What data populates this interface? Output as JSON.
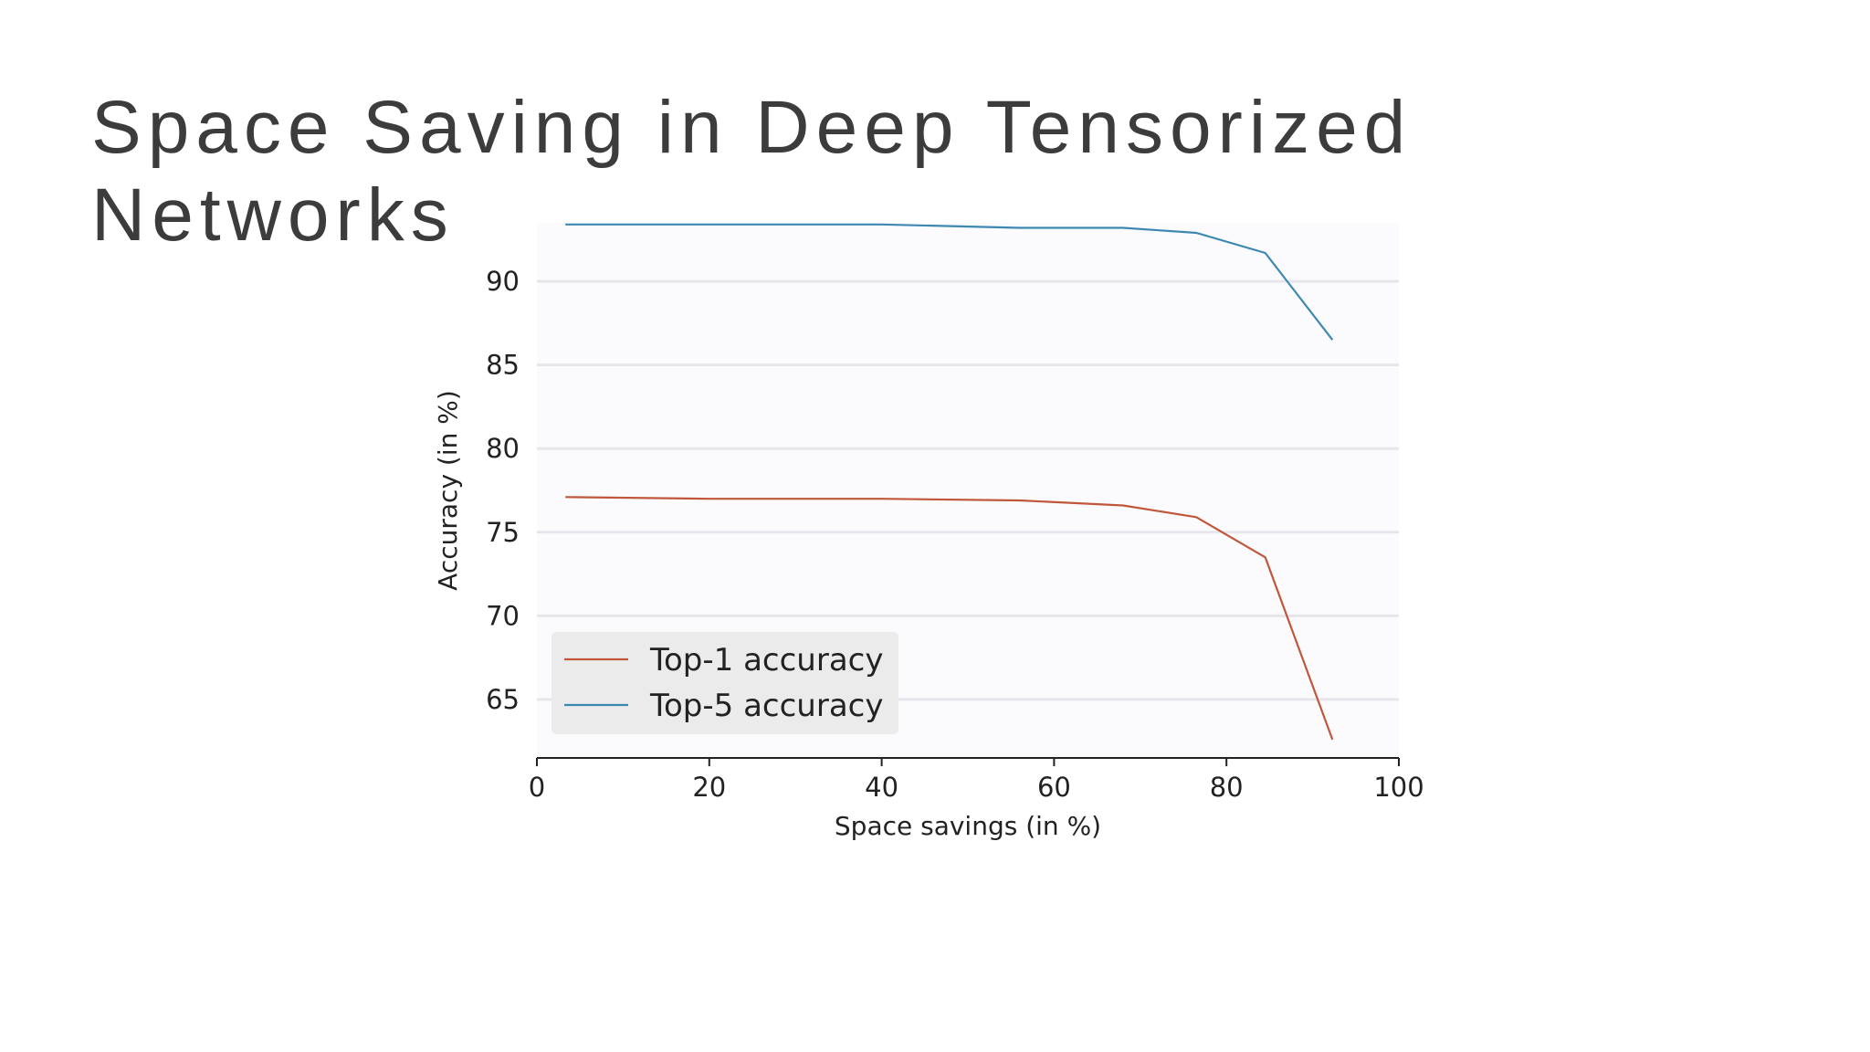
{
  "slide": {
    "title": "Space Saving in Deep Tensorized\nNetworks"
  },
  "chart_data": {
    "type": "line",
    "title": "",
    "xlabel": "Space savings (in %)",
    "ylabel": "Accuracy (in %)",
    "xlim": [
      0,
      100
    ],
    "ylim": [
      61.5,
      93.5
    ],
    "xticks": [
      0,
      20,
      40,
      60,
      80,
      100
    ],
    "yticks": [
      65,
      70,
      75,
      80,
      85,
      90
    ],
    "grid": "horizontal",
    "legend_position": "lower-left",
    "series": [
      {
        "name": "Top-1 accuracy",
        "color": "#c0573a",
        "x": [
          3.3,
          20,
          40,
          56,
          68,
          76.5,
          84.5,
          92.3
        ],
        "y": [
          77.1,
          77.0,
          77.0,
          76.9,
          76.6,
          75.9,
          73.5,
          62.6
        ]
      },
      {
        "name": "Top-5 accuracy",
        "color": "#3d88b3",
        "x": [
          3.3,
          20,
          40,
          56,
          68,
          76.5,
          84.5,
          92.3
        ],
        "y": [
          93.4,
          93.4,
          93.4,
          93.2,
          93.2,
          92.9,
          91.7,
          86.5
        ]
      }
    ]
  }
}
